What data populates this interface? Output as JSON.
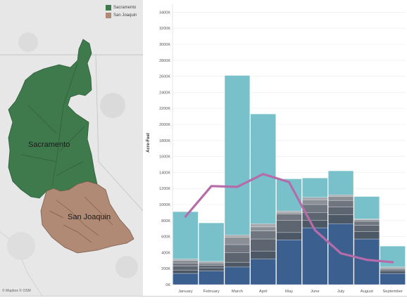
{
  "map": {
    "legend": [
      {
        "label": "Sacramento",
        "color": "#3f7a4c"
      },
      {
        "label": "San Joaquin",
        "color": "#b08a74"
      }
    ],
    "regions": [
      {
        "name": "Sacramento",
        "color": "#3f7a4c"
      },
      {
        "name": "San Joaquin",
        "color": "#b08a74"
      }
    ],
    "credit": "© Mapbox  © OSM"
  },
  "chart_data": {
    "type": "bar",
    "ylabel": "Acre-Feet",
    "ylim": [
      0,
      3500
    ],
    "y_unit_suffix": "K",
    "yticks": [
      0,
      200,
      400,
      600,
      800,
      1000,
      1200,
      1400,
      1600,
      1800,
      2000,
      2200,
      2400,
      2600,
      2800,
      3000,
      3200,
      3400
    ],
    "categories": [
      "January",
      "February",
      "March",
      "April",
      "May",
      "June",
      "July",
      "August",
      "September"
    ],
    "stacked_bars": [
      {
        "segments": [
          {
            "value": 140,
            "color": "#3b5f8f"
          },
          {
            "value": 40,
            "color": "#4c5866"
          },
          {
            "value": 50,
            "color": "#5d6670"
          },
          {
            "value": 40,
            "color": "#6f7680"
          },
          {
            "value": 30,
            "color": "#8a9096"
          },
          {
            "value": 20,
            "color": "#a6aaae"
          },
          {
            "value": 590,
            "color": "#78c1cb"
          }
        ]
      },
      {
        "segments": [
          {
            "value": 170,
            "color": "#3b5f8f"
          },
          {
            "value": 40,
            "color": "#4c5866"
          },
          {
            "value": 30,
            "color": "#5d6670"
          },
          {
            "value": 20,
            "color": "#6f7680"
          },
          {
            "value": 20,
            "color": "#8a9096"
          },
          {
            "value": 10,
            "color": "#a6aaae"
          },
          {
            "value": 480,
            "color": "#78c1cb"
          }
        ]
      },
      {
        "segments": [
          {
            "value": 220,
            "color": "#3b5f8f"
          },
          {
            "value": 60,
            "color": "#4c5866"
          },
          {
            "value": 120,
            "color": "#5d6670"
          },
          {
            "value": 100,
            "color": "#6f7680"
          },
          {
            "value": 90,
            "color": "#8a9096"
          },
          {
            "value": 30,
            "color": "#a6aaae"
          },
          {
            "value": 1990,
            "color": "#78c1cb"
          }
        ]
      },
      {
        "segments": [
          {
            "value": 320,
            "color": "#3b5f8f"
          },
          {
            "value": 100,
            "color": "#4c5866"
          },
          {
            "value": 150,
            "color": "#5d6670"
          },
          {
            "value": 100,
            "color": "#6f7680"
          },
          {
            "value": 50,
            "color": "#8a9096"
          },
          {
            "value": 40,
            "color": "#a6aaae"
          },
          {
            "value": 1370,
            "color": "#78c1cb"
          }
        ]
      },
      {
        "segments": [
          {
            "value": 560,
            "color": "#3b5f8f"
          },
          {
            "value": 90,
            "color": "#4c5866"
          },
          {
            "value": 150,
            "color": "#5d6670"
          },
          {
            "value": 80,
            "color": "#6f7680"
          },
          {
            "value": 20,
            "color": "#8a9096"
          },
          {
            "value": 20,
            "color": "#a6aaae"
          },
          {
            "value": 400,
            "color": "#78c1cb"
          }
        ]
      },
      {
        "segments": [
          {
            "value": 710,
            "color": "#3b5f8f"
          },
          {
            "value": 90,
            "color": "#4c5866"
          },
          {
            "value": 100,
            "color": "#5d6670"
          },
          {
            "value": 100,
            "color": "#6f7680"
          },
          {
            "value": 60,
            "color": "#8a9096"
          },
          {
            "value": 30,
            "color": "#a6aaae"
          },
          {
            "value": 240,
            "color": "#78c1cb"
          }
        ]
      },
      {
        "segments": [
          {
            "value": 760,
            "color": "#3b5f8f"
          },
          {
            "value": 110,
            "color": "#4c5866"
          },
          {
            "value": 100,
            "color": "#5d6670"
          },
          {
            "value": 80,
            "color": "#6f7680"
          },
          {
            "value": 50,
            "color": "#8a9096"
          },
          {
            "value": 20,
            "color": "#a6aaae"
          },
          {
            "value": 300,
            "color": "#78c1cb"
          }
        ]
      },
      {
        "segments": [
          {
            "value": 570,
            "color": "#3b5f8f"
          },
          {
            "value": 90,
            "color": "#4c5866"
          },
          {
            "value": 80,
            "color": "#5d6670"
          },
          {
            "value": 50,
            "color": "#6f7680"
          },
          {
            "value": 20,
            "color": "#8a9096"
          },
          {
            "value": 10,
            "color": "#a6aaae"
          },
          {
            "value": 280,
            "color": "#78c1cb"
          }
        ]
      },
      {
        "segments": [
          {
            "value": 140,
            "color": "#3b5f8f"
          },
          {
            "value": 30,
            "color": "#4c5866"
          },
          {
            "value": 20,
            "color": "#5d6670"
          },
          {
            "value": 10,
            "color": "#6f7680"
          },
          {
            "value": 10,
            "color": "#8a9096"
          },
          {
            "value": 10,
            "color": "#a6aaae"
          },
          {
            "value": 260,
            "color": "#78c1cb"
          }
        ]
      }
    ],
    "line_series": {
      "color": "#b56ca8",
      "values": [
        850,
        1230,
        1220,
        1380,
        1280,
        680,
        390,
        310,
        280
      ]
    },
    "grid": true
  }
}
